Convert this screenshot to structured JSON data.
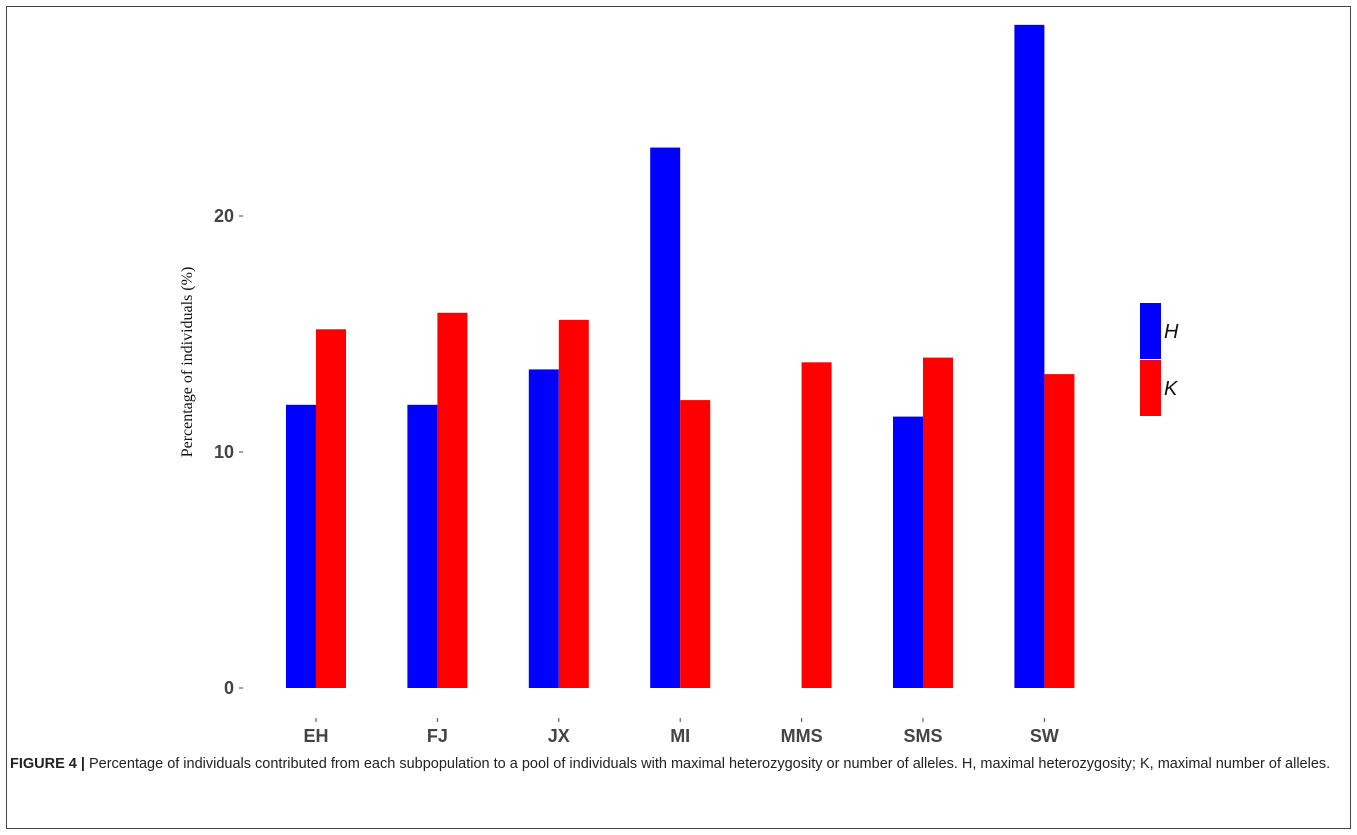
{
  "chart_data": {
    "type": "bar",
    "ylabel": "Percentage of individuals (%)",
    "xlabel": "",
    "categories": [
      "EH",
      "FJ",
      "JX",
      "MI",
      "MMS",
      "SMS",
      "SW"
    ],
    "series": [
      {
        "name": "H",
        "color": "#0000ff",
        "values": [
          12.0,
          12.0,
          13.5,
          22.9,
          0,
          11.5,
          28.1
        ]
      },
      {
        "name": "K",
        "color": "#ff0000",
        "values": [
          15.2,
          15.9,
          15.6,
          12.2,
          13.8,
          14.0,
          13.3
        ]
      }
    ],
    "yticks": [
      0,
      10,
      20
    ],
    "ylim": [
      0,
      28.5
    ],
    "legend_position": "right"
  },
  "caption": {
    "label": "FIGURE 4 |",
    "text": " Percentage of individuals contributed from each subpopulation to a pool of individuals with maximal heterozygosity or number of alleles. H, maximal heterozygosity; K, maximal number of alleles."
  }
}
